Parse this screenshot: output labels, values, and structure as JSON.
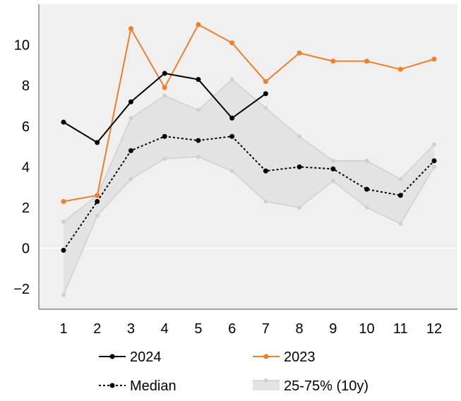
{
  "chart_data": {
    "type": "line",
    "title": "",
    "xlabel": "",
    "ylabel": "",
    "categories": [
      "1",
      "2",
      "3",
      "4",
      "5",
      "6",
      "7",
      "8",
      "9",
      "10",
      "11",
      "12"
    ],
    "y_ticks": [
      "−2",
      "0",
      "2",
      "4",
      "6",
      "8",
      "10"
    ],
    "ylim": [
      -3.0,
      12.0
    ],
    "grid": false,
    "legend_position": "bottom",
    "band": {
      "name": "25-75% (10y)",
      "color": "#d0d0d0",
      "fill": "#e3e3e3",
      "lower": [
        -2.3,
        1.6,
        3.4,
        4.4,
        4.5,
        3.8,
        2.3,
        2.0,
        3.3,
        2.0,
        1.2,
        4.0
      ],
      "upper": [
        1.3,
        2.6,
        6.4,
        7.5,
        6.8,
        8.3,
        6.9,
        5.5,
        4.3,
        4.3,
        3.4,
        5.1
      ]
    },
    "series": [
      {
        "name": "2024",
        "color": "#000000",
        "style": "solid",
        "values": [
          6.2,
          5.2,
          7.2,
          8.6,
          8.3,
          6.4,
          7.6,
          null,
          null,
          null,
          null,
          null
        ]
      },
      {
        "name": "2023",
        "color": "#f07f25",
        "style": "solid",
        "values": [
          2.3,
          2.6,
          10.8,
          7.9,
          11.0,
          10.1,
          8.2,
          9.6,
          9.2,
          9.2,
          8.8,
          9.3
        ]
      },
      {
        "name": "Median",
        "color": "#000000",
        "style": "dotted",
        "values": [
          -0.1,
          2.3,
          4.8,
          5.5,
          5.3,
          5.5,
          3.8,
          4.0,
          3.9,
          2.9,
          2.6,
          4.3
        ]
      }
    ]
  }
}
